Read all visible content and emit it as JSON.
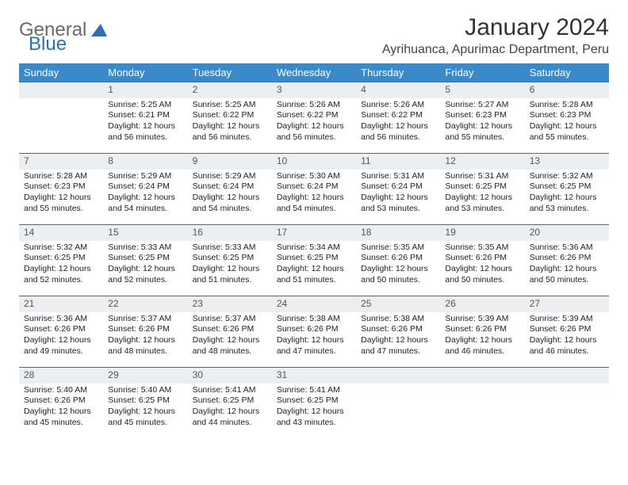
{
  "brand": {
    "name_a": "General",
    "name_b": "Blue",
    "logo_color": "#2a72b5"
  },
  "title": "January 2024",
  "location": "Ayrihuanca, Apurimac Department, Peru",
  "header_bg": "#3a8ac9",
  "daynum_bg": "#eceff1",
  "border_color": "#3a6ea5",
  "weekdays": [
    "Sunday",
    "Monday",
    "Tuesday",
    "Wednesday",
    "Thursday",
    "Friday",
    "Saturday"
  ],
  "weeks": [
    [
      null,
      {
        "d": "1",
        "sr": "5:25 AM",
        "ss": "6:21 PM",
        "dl": "12 hours and 56 minutes."
      },
      {
        "d": "2",
        "sr": "5:25 AM",
        "ss": "6:22 PM",
        "dl": "12 hours and 56 minutes."
      },
      {
        "d": "3",
        "sr": "5:26 AM",
        "ss": "6:22 PM",
        "dl": "12 hours and 56 minutes."
      },
      {
        "d": "4",
        "sr": "5:26 AM",
        "ss": "6:22 PM",
        "dl": "12 hours and 56 minutes."
      },
      {
        "d": "5",
        "sr": "5:27 AM",
        "ss": "6:23 PM",
        "dl": "12 hours and 55 minutes."
      },
      {
        "d": "6",
        "sr": "5:28 AM",
        "ss": "6:23 PM",
        "dl": "12 hours and 55 minutes."
      }
    ],
    [
      {
        "d": "7",
        "sr": "5:28 AM",
        "ss": "6:23 PM",
        "dl": "12 hours and 55 minutes."
      },
      {
        "d": "8",
        "sr": "5:29 AM",
        "ss": "6:24 PM",
        "dl": "12 hours and 54 minutes."
      },
      {
        "d": "9",
        "sr": "5:29 AM",
        "ss": "6:24 PM",
        "dl": "12 hours and 54 minutes."
      },
      {
        "d": "10",
        "sr": "5:30 AM",
        "ss": "6:24 PM",
        "dl": "12 hours and 54 minutes."
      },
      {
        "d": "11",
        "sr": "5:31 AM",
        "ss": "6:24 PM",
        "dl": "12 hours and 53 minutes."
      },
      {
        "d": "12",
        "sr": "5:31 AM",
        "ss": "6:25 PM",
        "dl": "12 hours and 53 minutes."
      },
      {
        "d": "13",
        "sr": "5:32 AM",
        "ss": "6:25 PM",
        "dl": "12 hours and 53 minutes."
      }
    ],
    [
      {
        "d": "14",
        "sr": "5:32 AM",
        "ss": "6:25 PM",
        "dl": "12 hours and 52 minutes."
      },
      {
        "d": "15",
        "sr": "5:33 AM",
        "ss": "6:25 PM",
        "dl": "12 hours and 52 minutes."
      },
      {
        "d": "16",
        "sr": "5:33 AM",
        "ss": "6:25 PM",
        "dl": "12 hours and 51 minutes."
      },
      {
        "d": "17",
        "sr": "5:34 AM",
        "ss": "6:25 PM",
        "dl": "12 hours and 51 minutes."
      },
      {
        "d": "18",
        "sr": "5:35 AM",
        "ss": "6:26 PM",
        "dl": "12 hours and 50 minutes."
      },
      {
        "d": "19",
        "sr": "5:35 AM",
        "ss": "6:26 PM",
        "dl": "12 hours and 50 minutes."
      },
      {
        "d": "20",
        "sr": "5:36 AM",
        "ss": "6:26 PM",
        "dl": "12 hours and 50 minutes."
      }
    ],
    [
      {
        "d": "21",
        "sr": "5:36 AM",
        "ss": "6:26 PM",
        "dl": "12 hours and 49 minutes."
      },
      {
        "d": "22",
        "sr": "5:37 AM",
        "ss": "6:26 PM",
        "dl": "12 hours and 48 minutes."
      },
      {
        "d": "23",
        "sr": "5:37 AM",
        "ss": "6:26 PM",
        "dl": "12 hours and 48 minutes."
      },
      {
        "d": "24",
        "sr": "5:38 AM",
        "ss": "6:26 PM",
        "dl": "12 hours and 47 minutes."
      },
      {
        "d": "25",
        "sr": "5:38 AM",
        "ss": "6:26 PM",
        "dl": "12 hours and 47 minutes."
      },
      {
        "d": "26",
        "sr": "5:39 AM",
        "ss": "6:26 PM",
        "dl": "12 hours and 46 minutes."
      },
      {
        "d": "27",
        "sr": "5:39 AM",
        "ss": "6:26 PM",
        "dl": "12 hours and 46 minutes."
      }
    ],
    [
      {
        "d": "28",
        "sr": "5:40 AM",
        "ss": "6:26 PM",
        "dl": "12 hours and 45 minutes."
      },
      {
        "d": "29",
        "sr": "5:40 AM",
        "ss": "6:25 PM",
        "dl": "12 hours and 45 minutes."
      },
      {
        "d": "30",
        "sr": "5:41 AM",
        "ss": "6:25 PM",
        "dl": "12 hours and 44 minutes."
      },
      {
        "d": "31",
        "sr": "5:41 AM",
        "ss": "6:25 PM",
        "dl": "12 hours and 43 minutes."
      },
      null,
      null,
      null
    ]
  ],
  "labels": {
    "sunrise": "Sunrise:",
    "sunset": "Sunset:",
    "daylight": "Daylight:"
  }
}
